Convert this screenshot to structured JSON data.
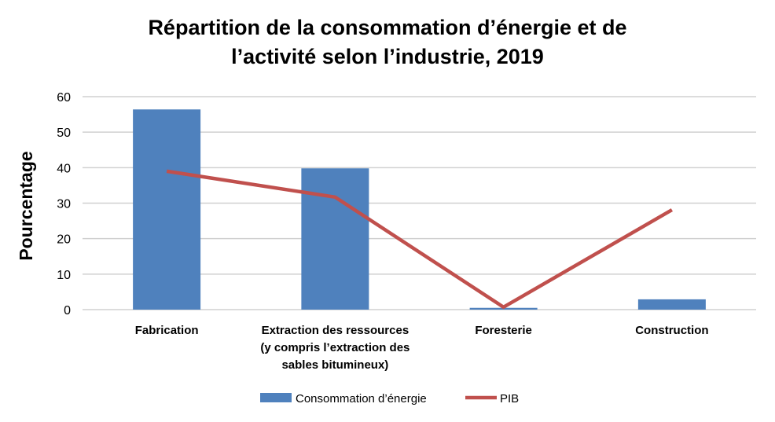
{
  "chart_data": {
    "type": "bar",
    "title_lines": [
      "Répartition de la consommation d’énergie et de",
      "l’activité selon l’industrie, 2019"
    ],
    "ylabel": "Pourcentage",
    "xlabel": "",
    "ylim": [
      0,
      60
    ],
    "yticks": [
      0,
      10,
      20,
      30,
      40,
      50,
      60
    ],
    "grid": true,
    "legend_position": "bottom",
    "categories": [
      [
        "Fabrication"
      ],
      [
        "Extraction des ressources",
        "(y compris l’extraction des",
        "sables bitumineux)"
      ],
      [
        "Foresterie"
      ],
      [
        "Construction"
      ]
    ],
    "series": [
      {
        "name": "Consommation d’énergie",
        "type": "bar",
        "color": "#4F81BD",
        "values": [
          56.4,
          39.8,
          0.5,
          2.9
        ]
      },
      {
        "name": "PIB",
        "type": "line",
        "color": "#C0504D",
        "values": [
          39.0,
          31.7,
          0.7,
          28.1
        ]
      }
    ]
  }
}
